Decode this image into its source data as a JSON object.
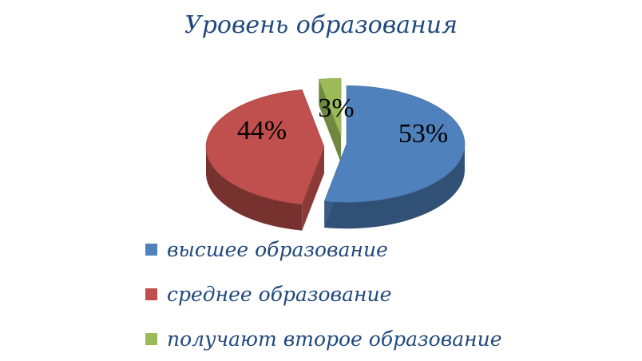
{
  "chart_data": {
    "type": "pie",
    "title": "Уровень образования",
    "categories": [
      "высшее образование",
      "среднее образование",
      "получают второе образование"
    ],
    "values": [
      53,
      44,
      3
    ],
    "data_labels": [
      "53%",
      "44%",
      "3%"
    ],
    "colors": [
      "#4F81BD",
      "#C0504D",
      "#9BBB59"
    ],
    "style": "3d-exploded",
    "legend_position": "bottom"
  }
}
